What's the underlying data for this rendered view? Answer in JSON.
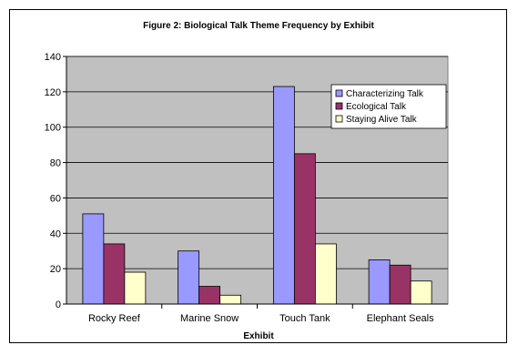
{
  "chart_data": {
    "type": "bar",
    "title": "Figure 2: Biological Talk Theme Frequency by Exhibit",
    "xlabel": "Exhibit",
    "ylabel": "",
    "categories": [
      "Rocky Reef",
      "Marine Snow",
      "Touch Tank",
      "Elephant Seals"
    ],
    "series": [
      {
        "name": "Characterizing Talk",
        "values": [
          51,
          30,
          123,
          25
        ],
        "color": "#9999ff"
      },
      {
        "name": "Ecological Talk",
        "values": [
          34,
          10,
          85,
          22
        ],
        "color": "#993366"
      },
      {
        "name": "Staying Alive Talk",
        "values": [
          18,
          5,
          34,
          13
        ],
        "color": "#ffffcc"
      }
    ],
    "ylim": [
      0,
      140
    ],
    "yticks": [
      0,
      20,
      40,
      60,
      80,
      100,
      120,
      140
    ],
    "grid": true,
    "plot_background": "#c0c0c0",
    "legend_position": "top-right"
  }
}
